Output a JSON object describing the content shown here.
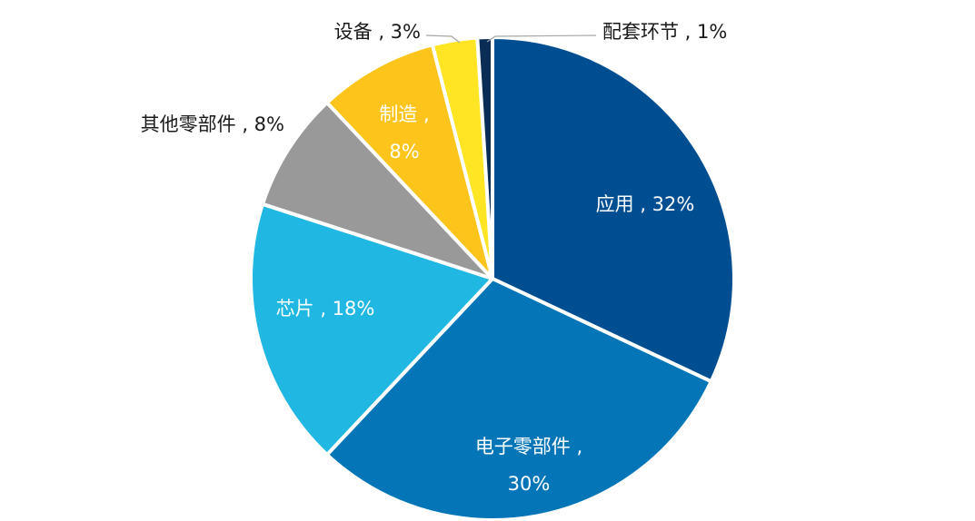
{
  "chart_data": {
    "type": "pie",
    "title": "",
    "label_separator": " , ",
    "slices": [
      {
        "name": "应用",
        "value": 32,
        "label": "32%",
        "color": "#004E92",
        "label_color": "#FFFFFF"
      },
      {
        "name": "电子零部件",
        "value": 30,
        "label": "30%",
        "color": "#0476B8",
        "label_color": "#FFFFFF"
      },
      {
        "name": "芯片",
        "value": 18,
        "label": "18%",
        "color": "#20B8E2",
        "label_color": "#FFFFFF"
      },
      {
        "name": "其他零部件",
        "value": 8,
        "label": "8%",
        "color": "#999999",
        "label_color": "#1A1A1A"
      },
      {
        "name": "制造",
        "value": 8,
        "label": "8%",
        "color": "#FDC51C",
        "label_color": "#FFFFFF"
      },
      {
        "name": "设备",
        "value": 3,
        "label": "3%",
        "color": "#FFE524",
        "label_color": "#1A1A1A"
      },
      {
        "name": "配套环节",
        "value": 1,
        "label": "1%",
        "color": "#0A2D55",
        "label_color": "#1A1A1A"
      }
    ]
  }
}
